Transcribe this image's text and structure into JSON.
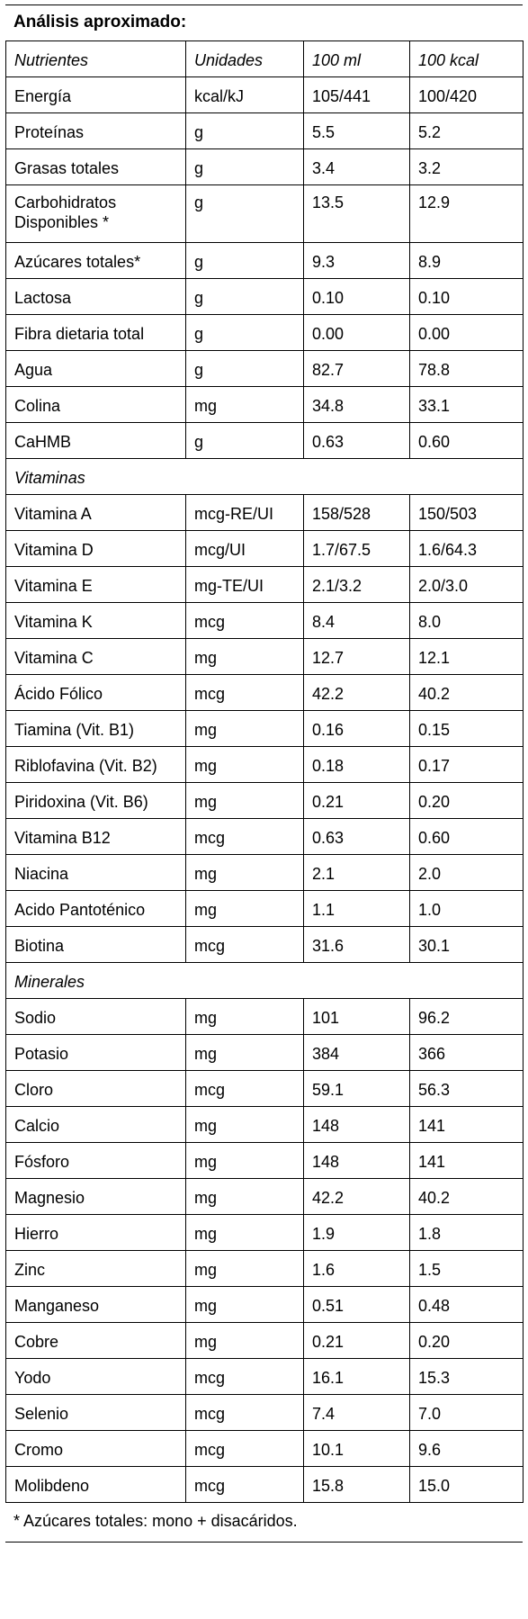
{
  "title": "Análisis aproximado:",
  "table": {
    "header": [
      "Nutrientes",
      "Unidades",
      "100 ml",
      "100 kcal"
    ],
    "rows": [
      [
        "Energía",
        "kcal/kJ",
        "105/441",
        "100/420"
      ],
      [
        "Proteínas",
        "g",
        "5.5",
        "5.2"
      ],
      [
        "Grasas totales",
        "g",
        "3.4",
        "3.2"
      ],
      [
        "Carbohidratos Disponibles *",
        "g",
        "13.5",
        "12.9"
      ],
      [
        "Azúcares totales*",
        "g",
        "9.3",
        "8.9"
      ],
      [
        "Lactosa",
        "g",
        "0.10",
        "0.10"
      ],
      [
        "Fibra dietaria total",
        "g",
        "0.00",
        "0.00"
      ],
      [
        "Agua",
        "g",
        "82.7",
        "78.8"
      ],
      [
        "Colina",
        "mg",
        "34.8",
        "33.1"
      ],
      [
        "CaHMB",
        "g",
        "0.63",
        "0.60"
      ],
      [
        "Vitaminas"
      ],
      [
        "Vitamina A",
        "mcg-RE/UI",
        "158/528",
        "150/503"
      ],
      [
        "Vitamina D",
        "mcg/UI",
        "1.7/67.5",
        "1.6/64.3"
      ],
      [
        "Vitamina E",
        "mg-TE/UI",
        "2.1/3.2",
        "2.0/3.0"
      ],
      [
        "Vitamina K",
        "mcg",
        "8.4",
        "8.0"
      ],
      [
        "Vitamina C",
        "mg",
        "12.7",
        "12.1"
      ],
      [
        "Ácido Fólico",
        "mcg",
        "42.2",
        "40.2"
      ],
      [
        "Tiamina (Vit. B1)",
        "mg",
        "0.16",
        "0.15"
      ],
      [
        "Riblofavina (Vit. B2)",
        "mg",
        "0.18",
        "0.17"
      ],
      [
        "Piridoxina (Vit. B6)",
        "mg",
        "0.21",
        "0.20"
      ],
      [
        "Vitamina B12",
        "mcg",
        "0.63",
        "0.60"
      ],
      [
        "Niacina",
        "mg",
        "2.1",
        "2.0"
      ],
      [
        "Acido Pantoténico",
        "mg",
        "1.1",
        "1.0"
      ],
      [
        "Biotina",
        "mcg",
        "31.6",
        "30.1"
      ],
      [
        "Minerales"
      ],
      [
        "Sodio",
        "mg",
        "101",
        "96.2"
      ],
      [
        "Potasio",
        "mg",
        "384",
        "366"
      ],
      [
        "Cloro",
        "mcg",
        "59.1",
        "56.3"
      ],
      [
        "Calcio",
        "mg",
        "148",
        "141"
      ],
      [
        "Fósforo",
        "mg",
        "148",
        "141"
      ],
      [
        "Magnesio",
        "mg",
        "42.2",
        "40.2"
      ],
      [
        "Hierro",
        "mg",
        "1.9",
        "1.8"
      ],
      [
        "Zinc",
        "mg",
        "1.6",
        "1.5"
      ],
      [
        "Manganeso",
        "mg",
        "0.51",
        "0.48"
      ],
      [
        "Cobre",
        "mg",
        "0.21",
        "0.20"
      ],
      [
        "Yodo",
        "mcg",
        "16.1",
        "15.3"
      ],
      [
        "Selenio",
        "mcg",
        "7.4",
        "7.0"
      ],
      [
        "Cromo",
        "mcg",
        "10.1",
        "9.6"
      ],
      [
        "Molibdeno",
        "mcg",
        "15.8",
        "15.0"
      ]
    ]
  },
  "footnote": "* Azúcares totales: mono + disacáridos."
}
